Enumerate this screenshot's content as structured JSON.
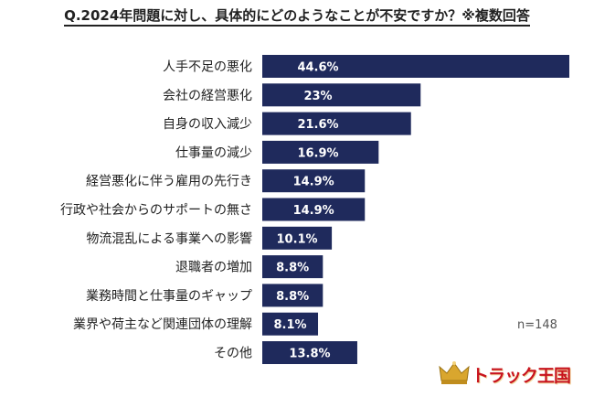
{
  "header": {
    "title": "Q.2024年問題に対し、具体的にどのようなことが不安ですか？※複数回答"
  },
  "sample_size": "n=148",
  "logo": {
    "text": "トラック王国"
  },
  "colors": {
    "bar": "#1f2a5c",
    "label_text": "#ffffff",
    "category_text": "#222222"
  },
  "chart_data": {
    "type": "bar",
    "orientation": "horizontal",
    "title": "Q.2024年問題に対し、具体的にどのようなことが不安ですか？※複数回答",
    "categories": [
      "人手不足の悪化",
      "会社の経営悪化",
      "自身の収入減少",
      "仕事量の減少",
      "経営悪化に伴う雇用の先行き",
      "行政や社会からのサポートの無さ",
      "物流混乱による事業への影響",
      "退職者の増加",
      "業務時間と仕事量のギャップ",
      "業界や荷主など関連団体の理解",
      "その他"
    ],
    "values": [
      44.6,
      23,
      21.6,
      16.9,
      14.9,
      14.9,
      10.1,
      8.8,
      8.8,
      8.1,
      13.8
    ],
    "value_labels": [
      "44.6%",
      "23%",
      "21.6%",
      "16.9%",
      "14.9%",
      "14.9%",
      "10.1%",
      "8.8%",
      "8.8%",
      "8.1%",
      "13.8%"
    ],
    "xlim": [
      0,
      44.6
    ],
    "grid": false,
    "legend": "none"
  }
}
